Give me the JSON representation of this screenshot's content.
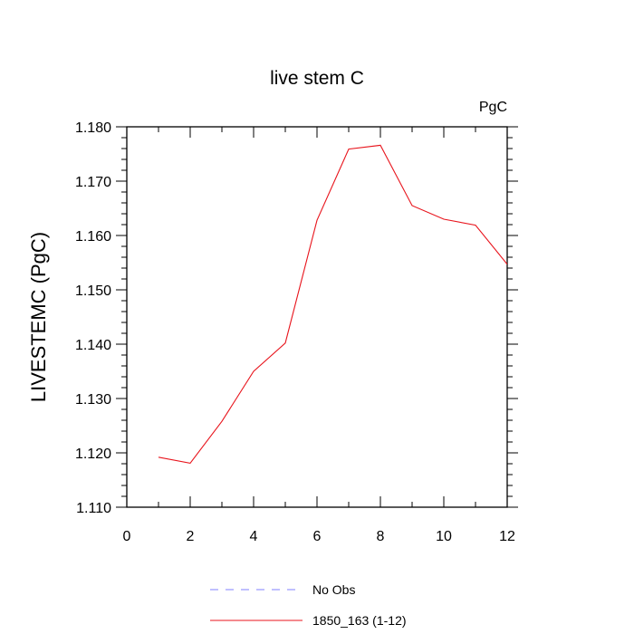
{
  "chart_data": {
    "type": "line",
    "title": "live stem C",
    "units_label": "PgC",
    "xlabel": "",
    "ylabel": "LIVESTEMC  (PgC)",
    "xlim": [
      0,
      12
    ],
    "ylim": [
      1.11,
      1.18
    ],
    "x_ticks": [
      "0",
      "2",
      "4",
      "6",
      "8",
      "10",
      "12"
    ],
    "y_ticks": [
      "1.110",
      "1.120",
      "1.130",
      "1.140",
      "1.150",
      "1.160",
      "1.170",
      "1.180"
    ],
    "grid": false,
    "legend_position": "bottom",
    "series": [
      {
        "name": "1850_163 (1-12)",
        "color": "#e8141c",
        "dash": "solid",
        "x": [
          1,
          2,
          3,
          4,
          5,
          6,
          7,
          8,
          9,
          10,
          11,
          12
        ],
        "y": [
          1.1192,
          1.1181,
          1.1258,
          1.135,
          1.1402,
          1.1628,
          1.1759,
          1.1766,
          1.1655,
          1.163,
          1.1619,
          1.1547
        ]
      }
    ],
    "legend": [
      {
        "label": "No Obs",
        "color": "#8080ff",
        "dash": "dashed"
      },
      {
        "label": "1850_163 (1-12)",
        "color": "#e8141c",
        "dash": "solid"
      }
    ]
  }
}
